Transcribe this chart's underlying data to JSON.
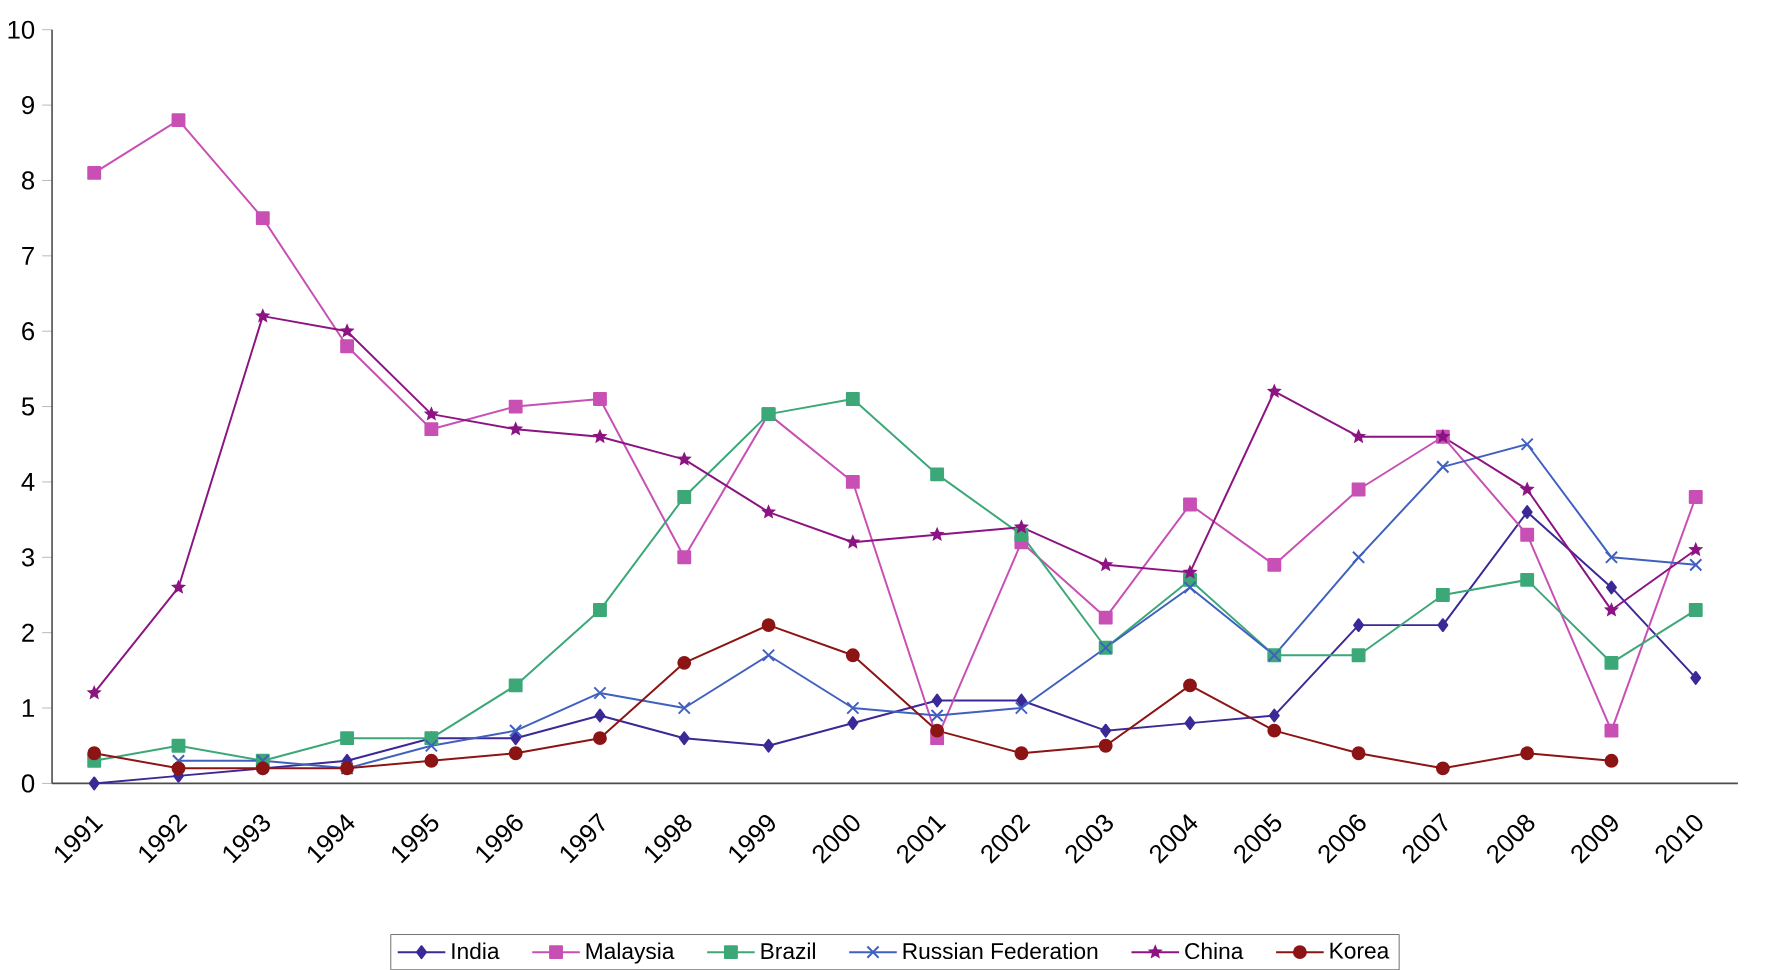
{
  "chart_data": {
    "type": "line",
    "categories": [
      "1991",
      "1992",
      "1993",
      "1994",
      "1995",
      "1996",
      "1997",
      "1998",
      "1999",
      "2000",
      "2001",
      "2002",
      "2003",
      "2004",
      "2005",
      "2006",
      "2007",
      "2008",
      "2009",
      "2010"
    ],
    "series": [
      {
        "name": "India",
        "color": "#3c2896",
        "marker": "diamond",
        "values": [
          0,
          0.1,
          0.2,
          0.3,
          0.6,
          0.6,
          0.9,
          0.6,
          0.5,
          0.8,
          1.1,
          1.1,
          0.7,
          0.8,
          0.9,
          2.1,
          2.1,
          3.6,
          2.6,
          1.4
        ]
      },
      {
        "name": "Malaysia",
        "color": "#c850b4",
        "marker": "square",
        "values": [
          8.1,
          8.8,
          7.5,
          5.8,
          4.7,
          5.0,
          5.1,
          3.0,
          4.9,
          4.0,
          0.6,
          3.2,
          2.2,
          3.7,
          2.9,
          3.9,
          4.6,
          3.3,
          0.7,
          3.8
        ]
      },
      {
        "name": "Brazil",
        "color": "#3ca878",
        "marker": "square",
        "values": [
          0.3,
          0.5,
          0.3,
          0.6,
          0.6,
          1.3,
          2.3,
          3.8,
          4.9,
          5.1,
          4.1,
          3.3,
          1.8,
          2.7,
          1.7,
          1.7,
          2.5,
          2.7,
          1.6,
          2.3
        ]
      },
      {
        "name": "Russian Federation",
        "color": "#4060c0",
        "marker": "cross",
        "values": [
          null,
          0.3,
          0.3,
          0.2,
          0.5,
          0.7,
          1.2,
          1.0,
          1.7,
          1.0,
          0.9,
          1.0,
          1.8,
          2.6,
          1.7,
          3.0,
          4.2,
          4.5,
          3.0,
          2.9
        ]
      },
      {
        "name": "China",
        "color": "#8c1482",
        "marker": "star",
        "values": [
          1.2,
          2.6,
          6.2,
          6.0,
          4.9,
          4.7,
          4.6,
          4.3,
          3.6,
          3.2,
          3.3,
          3.4,
          2.9,
          2.8,
          5.2,
          4.6,
          4.6,
          3.9,
          2.3,
          3.1
        ]
      },
      {
        "name": "Korea",
        "color": "#8c1414",
        "marker": "circle",
        "values": [
          0.4,
          0.2,
          0.2,
          0.2,
          0.3,
          0.4,
          0.6,
          1.6,
          2.1,
          1.7,
          0.7,
          0.4,
          0.5,
          1.3,
          0.7,
          0.4,
          0.2,
          0.4,
          0.3,
          null
        ]
      }
    ],
    "ylim": [
      0,
      10
    ],
    "yticks": [
      0,
      1,
      2,
      3,
      4,
      5,
      6,
      7,
      8,
      9,
      10
    ],
    "grid": false,
    "legend": "bottom"
  }
}
